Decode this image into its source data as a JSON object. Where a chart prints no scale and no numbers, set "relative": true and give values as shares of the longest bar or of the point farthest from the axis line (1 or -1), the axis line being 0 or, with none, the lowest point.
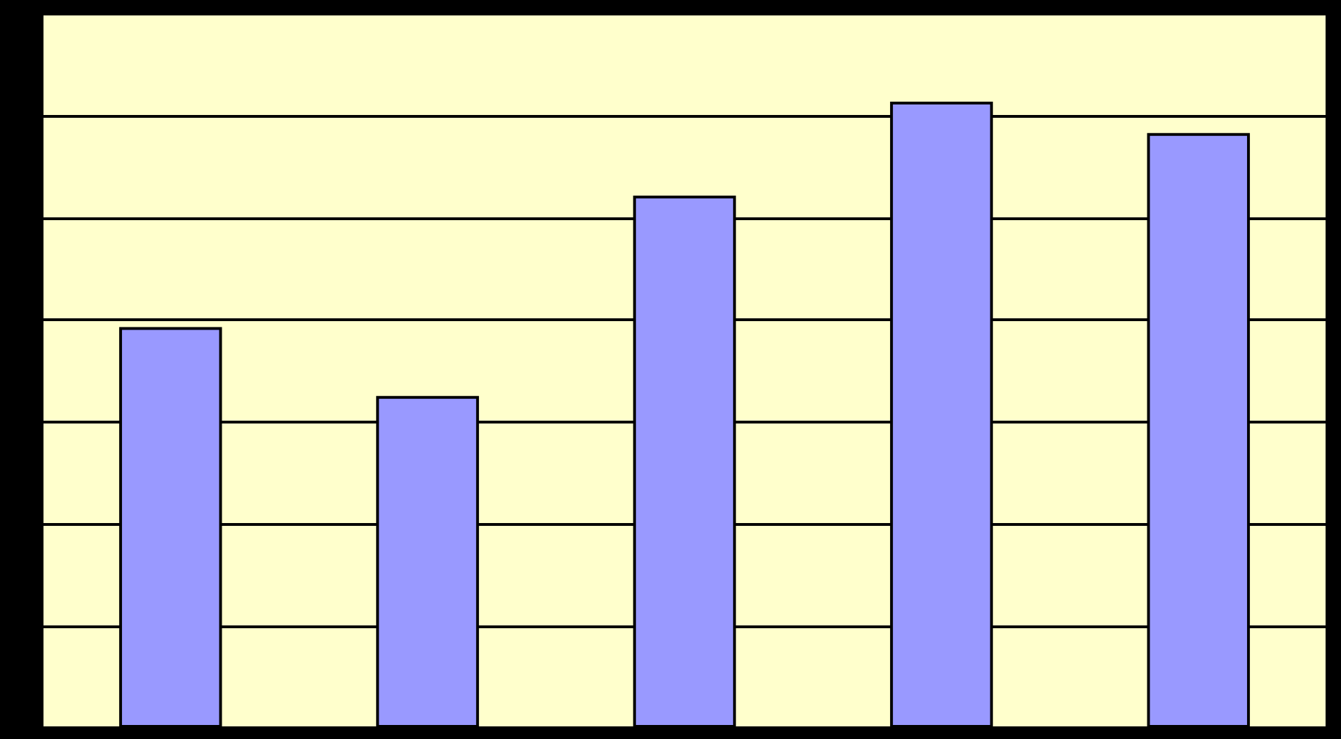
{
  "chart_data": {
    "type": "bar",
    "relative": true,
    "categories": [
      null,
      null,
      null,
      null,
      null
    ],
    "values": [
      0.64,
      0.53,
      0.85,
      1,
      0.95
    ],
    "color": "#9999ff",
    "grid": "y"
  }
}
